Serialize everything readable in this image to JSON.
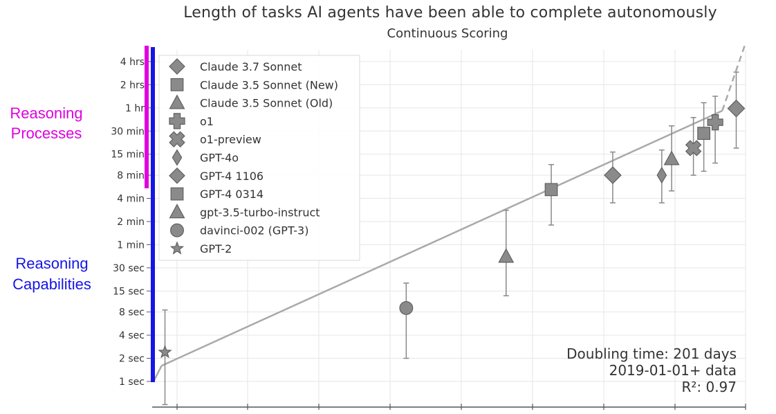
{
  "chart_data": {
    "type": "scatter",
    "title": "Length of tasks AI agents have been able to complete autonomously",
    "subtitle": "Continuous Scoring",
    "xlabel": "",
    "ylabel": "",
    "y_scale": "log",
    "y_ticks": [
      {
        "label": "1 sec",
        "seconds": 1
      },
      {
        "label": "2 sec",
        "seconds": 2
      },
      {
        "label": "4 sec",
        "seconds": 4
      },
      {
        "label": "8 sec",
        "seconds": 8
      },
      {
        "label": "15 sec",
        "seconds": 15
      },
      {
        "label": "30 sec",
        "seconds": 30
      },
      {
        "label": "1 min",
        "seconds": 60
      },
      {
        "label": "2 min",
        "seconds": 120
      },
      {
        "label": "4 min",
        "seconds": 240
      },
      {
        "label": "8 min",
        "seconds": 480
      },
      {
        "label": "15 min",
        "seconds": 900
      },
      {
        "label": "30 min",
        "seconds": 1800
      },
      {
        "label": "1 hr",
        "seconds": 3600
      },
      {
        "label": "2 hrs",
        "seconds": 7200
      },
      {
        "label": "4 hrs",
        "seconds": 14400
      }
    ],
    "xlim": [
      "2019-01-01",
      "2025-04-01"
    ],
    "ylim_seconds": [
      0.6,
      26000
    ],
    "grid": true,
    "legend_position": "top-left",
    "series": [
      {
        "name": "Claude 3.7 Sonnet",
        "marker": "diamond",
        "x": "2025-02-24",
        "y_seconds": 3540,
        "ci_seconds": [
          1080,
          10500
        ]
      },
      {
        "name": "Claude 3.5 Sonnet (New)",
        "marker": "square",
        "x": "2024-10-22",
        "y_seconds": 1680,
        "ci_seconds": [
          540,
          4200
        ]
      },
      {
        "name": "Claude 3.5 Sonnet (Old)",
        "marker": "triangle",
        "x": "2024-06-20",
        "y_seconds": 780,
        "ci_seconds": [
          300,
          2100
        ]
      },
      {
        "name": "o1",
        "marker": "plus",
        "x": "2024-12-05",
        "y_seconds": 2340,
        "ci_seconds": [
          690,
          5100
        ]
      },
      {
        "name": "o1-preview",
        "marker": "x",
        "x": "2024-09-12",
        "y_seconds": 1080,
        "ci_seconds": [
          480,
          2700
        ]
      },
      {
        "name": "GPT-4o",
        "marker": "thin-diamond",
        "x": "2024-05-13",
        "y_seconds": 480,
        "ci_seconds": [
          210,
          1020
        ]
      },
      {
        "name": "GPT-4 1106",
        "marker": "diamond",
        "x": "2023-11-06",
        "y_seconds": 480,
        "ci_seconds": [
          210,
          960
        ]
      },
      {
        "name": "GPT-4 0314",
        "marker": "square",
        "x": "2023-03-14",
        "y_seconds": 312,
        "ci_seconds": [
          108,
          660
        ]
      },
      {
        "name": "gpt-3.5-turbo-instruct",
        "marker": "triangle",
        "x": "2022-09-21",
        "y_seconds": 42,
        "ci_seconds": [
          13,
          168
        ]
      },
      {
        "name": "davinci-002 (GPT-3)",
        "marker": "circle",
        "x": "2021-09-01",
        "y_seconds": 9,
        "ci_seconds": [
          2,
          19
        ]
      },
      {
        "name": "GPT-2",
        "marker": "star",
        "x": "2019-02-14",
        "y_seconds": 2.4,
        "ci_seconds": [
          0.5,
          8.5
        ]
      }
    ],
    "trend_line": {
      "fit_seconds": [
        {
          "x": "2019-02-01",
          "y": 1.6
        },
        {
          "x": "2025-01-01",
          "y": 3300
        }
      ],
      "extrapolated_seconds": [
        {
          "x": "2025-01-01",
          "y": 3300
        },
        {
          "x": "2025-04-01",
          "y": 25000
        }
      ]
    },
    "annotations": [
      "Doubling time: 201 days",
      "2019-01-01+ data",
      "R²: 0.97"
    ]
  },
  "side_labels": {
    "pink": [
      "Reasoning",
      "Processes"
    ],
    "blue": [
      "Reasoning",
      "Capabilities"
    ]
  },
  "colors": {
    "marker": "#8a8a8a",
    "marker_stroke": "#5f5f5f",
    "trend": "#a9a9a9",
    "grid": "#e6e6e6",
    "pink_bar": "#e000e0",
    "blue_bar": "#1515e6"
  }
}
